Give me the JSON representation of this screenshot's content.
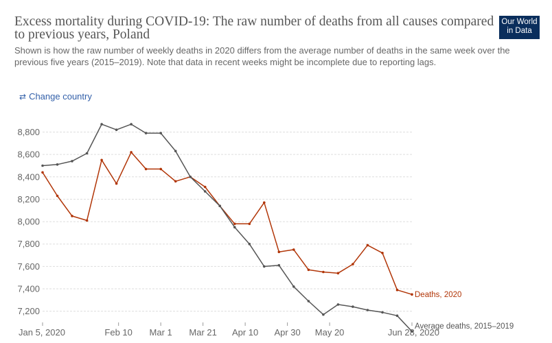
{
  "header": {
    "title": "Excess mortality during COVID-19: The raw number of deaths from all causes compared to previous years, Poland",
    "subtitle": "Shown is how the raw number of weekly deaths in 2020 differs from the average number of deaths in the same week over the previous five years (2015–2019). Note that data in recent weeks might be incomplete due to reporting lags.",
    "logo_line1": "Our World",
    "logo_line2": "in Data",
    "change_country": "Change country"
  },
  "chart_data": {
    "type": "line",
    "title": "Excess mortality during COVID-19: The raw number of deaths from all causes compared to previous years, Poland",
    "xlabel": "",
    "ylabel": "",
    "ylim": [
      7100,
      8950
    ],
    "yticks": [
      7200,
      7400,
      7600,
      7800,
      8000,
      8200,
      8400,
      8600,
      8800
    ],
    "ytick_labels": [
      "7,200",
      "7,400",
      "7,600",
      "7,800",
      "8,000",
      "8,200",
      "8,400",
      "8,600",
      "8,800"
    ],
    "xtick_labels": [
      "Jan 5, 2020",
      "Feb 10",
      "Mar 1",
      "Mar 21",
      "Apr 10",
      "Apr 30",
      "May 20",
      "Jun 28, 2020"
    ],
    "xtick_days": [
      0,
      36,
      56,
      76,
      96,
      116,
      136,
      175
    ],
    "x_days": [
      0,
      7,
      14,
      21,
      28,
      35,
      42,
      49,
      56,
      63,
      70,
      77,
      84,
      91,
      98,
      105,
      112,
      119,
      126,
      133,
      140,
      147,
      154,
      161,
      168,
      175
    ],
    "grid": true,
    "legend": "inline labels at line ends",
    "series": [
      {
        "name": "Deaths, 2020",
        "color": "#b13507",
        "values": [
          8440,
          8230,
          8050,
          8010,
          8550,
          8340,
          8620,
          8470,
          8470,
          8360,
          8400,
          8310,
          8140,
          7980,
          7980,
          8170,
          7730,
          7750,
          7570,
          7550,
          7540,
          7620,
          7790,
          7720,
          7390,
          7350
        ]
      },
      {
        "name": "Average deaths, 2015–2019",
        "color": "#555555",
        "values": [
          8500,
          8510,
          8540,
          8610,
          8870,
          8820,
          8870,
          8790,
          8790,
          8630,
          8400,
          8270,
          8140,
          7950,
          7800,
          7600,
          7610,
          7420,
          7290,
          7170,
          7260,
          7240,
          7210,
          7190,
          7160,
          7020
        ]
      }
    ]
  }
}
